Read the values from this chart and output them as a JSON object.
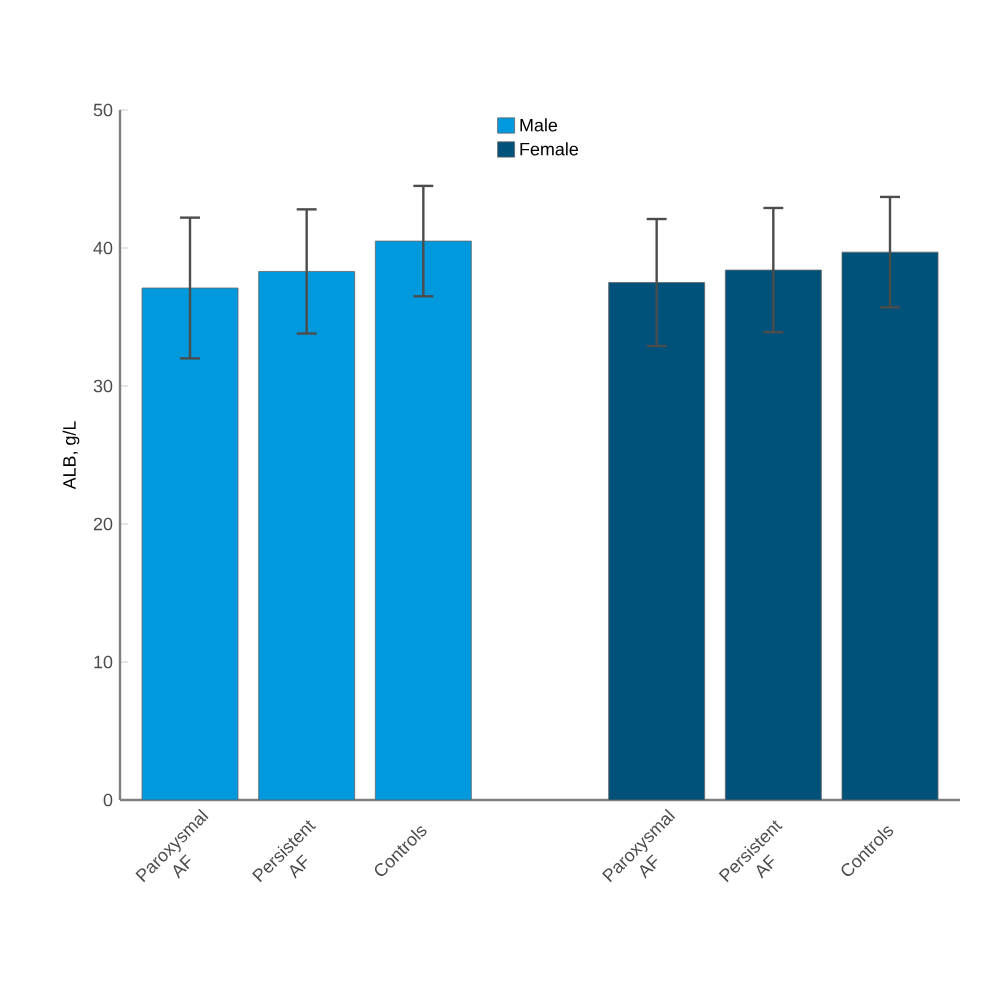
{
  "chart_data": {
    "type": "bar",
    "ylabel": "ALB, g/L",
    "categories": [
      "Paroxysmal AF",
      "Persistent AF",
      "Controls",
      "Paroxysmal AF",
      "Persistent AF",
      "Controls"
    ],
    "series": [
      {
        "name": "Male",
        "color": "#0099dd",
        "values": [
          37.1,
          38.3,
          40.5,
          null,
          null,
          null
        ],
        "errors": [
          5.1,
          4.5,
          4,
          null,
          null,
          null
        ]
      },
      {
        "name": "Female",
        "color": "#00527a",
        "values": [
          null,
          null,
          null,
          37.5,
          38.4,
          39.7
        ],
        "errors": [
          null,
          null,
          null,
          4.6,
          4.5,
          4
        ]
      }
    ],
    "ylim": [
      0,
      50
    ],
    "yticks": [
      0,
      10,
      20,
      30,
      40,
      50
    ],
    "legend": "top"
  }
}
